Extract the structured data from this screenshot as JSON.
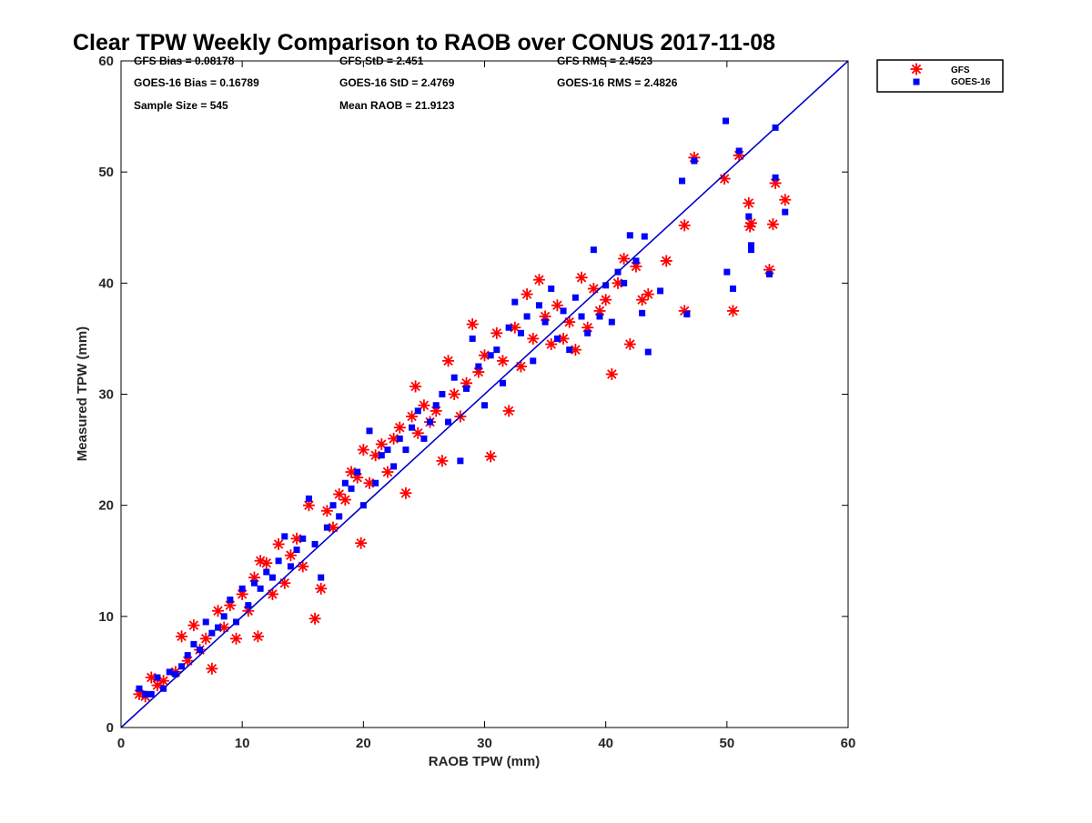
{
  "chart_data": {
    "type": "scatter",
    "title": "Clear TPW Weekly Comparison to RAOB over CONUS 2017-11-08",
    "xlabel": "RAOB TPW (mm)",
    "ylabel": "Measured TPW (mm)",
    "xlim": [
      0,
      60
    ],
    "ylim": [
      0,
      60
    ],
    "xticks": [
      0,
      10,
      20,
      30,
      40,
      50,
      60
    ],
    "yticks": [
      0,
      10,
      20,
      30,
      40,
      50,
      60
    ],
    "grid": false,
    "legend_position": "top-right outside",
    "reference_line": {
      "from": [
        0,
        0
      ],
      "to": [
        60,
        60
      ],
      "color": "#0000cc"
    },
    "stats": [
      {
        "text": "GFS Bias = 0.08178",
        "row": 0,
        "col": 0
      },
      {
        "text": "GFS StD = 2.451",
        "row": 0,
        "col": 1
      },
      {
        "text": "GFS RMS = 2.4523",
        "row": 0,
        "col": 2
      },
      {
        "text": "GOES-16 Bias = 0.16789",
        "row": 1,
        "col": 0
      },
      {
        "text": "GOES-16 StD = 2.4769",
        "row": 1,
        "col": 1
      },
      {
        "text": "GOES-16 RMS = 2.4826",
        "row": 1,
        "col": 2
      },
      {
        "text": "Sample Size = 545",
        "row": 2,
        "col": 0
      },
      {
        "text": "Mean RAOB = 21.9123",
        "row": 2,
        "col": 1
      }
    ],
    "series": [
      {
        "name": "GFS",
        "marker": "asterisk",
        "color": "#ff0000",
        "points": [
          [
            1.5,
            3.0
          ],
          [
            2.0,
            2.8
          ],
          [
            2.5,
            4.5
          ],
          [
            3.0,
            3.8
          ],
          [
            3.5,
            4.2
          ],
          [
            4.5,
            5.0
          ],
          [
            5.0,
            8.2
          ],
          [
            5.5,
            6.0
          ],
          [
            6.0,
            9.2
          ],
          [
            6.5,
            7.0
          ],
          [
            7.0,
            8.0
          ],
          [
            7.5,
            5.3
          ],
          [
            8.0,
            10.5
          ],
          [
            8.5,
            9.0
          ],
          [
            9.0,
            11.0
          ],
          [
            9.5,
            8.0
          ],
          [
            10.0,
            12.0
          ],
          [
            10.5,
            10.5
          ],
          [
            11.0,
            13.5
          ],
          [
            11.3,
            8.2
          ],
          [
            11.5,
            15.0
          ],
          [
            12.0,
            14.8
          ],
          [
            12.5,
            12.0
          ],
          [
            13.0,
            16.5
          ],
          [
            13.5,
            13.0
          ],
          [
            14.0,
            15.5
          ],
          [
            14.5,
            17.0
          ],
          [
            15.0,
            14.5
          ],
          [
            15.5,
            20.0
          ],
          [
            16.0,
            9.8
          ],
          [
            16.5,
            12.5
          ],
          [
            17.0,
            19.5
          ],
          [
            17.5,
            18.0
          ],
          [
            18.0,
            21.0
          ],
          [
            18.5,
            20.5
          ],
          [
            19.0,
            23.0
          ],
          [
            19.5,
            22.5
          ],
          [
            19.8,
            16.6
          ],
          [
            20.0,
            25.0
          ],
          [
            20.5,
            22.0
          ],
          [
            21.0,
            24.5
          ],
          [
            21.5,
            25.5
          ],
          [
            22.0,
            23.0
          ],
          [
            22.5,
            26.0
          ],
          [
            23.0,
            27.0
          ],
          [
            23.5,
            21.1
          ],
          [
            24.0,
            28.0
          ],
          [
            24.3,
            30.7
          ],
          [
            24.5,
            26.5
          ],
          [
            25.0,
            29.0
          ],
          [
            25.5,
            27.5
          ],
          [
            26.0,
            28.5
          ],
          [
            26.5,
            24.0
          ],
          [
            27.0,
            33.0
          ],
          [
            27.5,
            30.0
          ],
          [
            28.0,
            28.0
          ],
          [
            28.5,
            31.0
          ],
          [
            29.0,
            36.3
          ],
          [
            29.5,
            32.0
          ],
          [
            30.0,
            33.5
          ],
          [
            30.5,
            24.4
          ],
          [
            31.0,
            35.5
          ],
          [
            31.5,
            33.0
          ],
          [
            32.0,
            28.5
          ],
          [
            32.5,
            36.0
          ],
          [
            33.0,
            32.5
          ],
          [
            33.5,
            39.0
          ],
          [
            34.0,
            35.0
          ],
          [
            34.5,
            40.3
          ],
          [
            35.0,
            37.0
          ],
          [
            35.5,
            34.5
          ],
          [
            36.0,
            38.0
          ],
          [
            36.5,
            35.0
          ],
          [
            37.0,
            36.5
          ],
          [
            37.5,
            34.0
          ],
          [
            38.0,
            40.5
          ],
          [
            38.5,
            36.0
          ],
          [
            39.0,
            39.5
          ],
          [
            39.5,
            37.5
          ],
          [
            40.0,
            38.5
          ],
          [
            40.5,
            31.8
          ],
          [
            41.0,
            40.0
          ],
          [
            41.5,
            42.2
          ],
          [
            42.0,
            34.5
          ],
          [
            42.5,
            41.5
          ],
          [
            43.0,
            38.5
          ],
          [
            43.5,
            39.0
          ],
          [
            45.0,
            42.0
          ],
          [
            46.5,
            45.2
          ],
          [
            46.5,
            37.5
          ],
          [
            47.3,
            51.3
          ],
          [
            49.8,
            49.4
          ],
          [
            50.5,
            37.5
          ],
          [
            51.0,
            51.5
          ],
          [
            51.8,
            47.2
          ],
          [
            51.9,
            45.1
          ],
          [
            52.0,
            45.4
          ],
          [
            53.5,
            41.2
          ],
          [
            53.8,
            45.3
          ],
          [
            54.0,
            49.0
          ],
          [
            54.8,
            47.5
          ]
        ]
      },
      {
        "name": "GOES-16",
        "marker": "square",
        "color": "#0000ff",
        "points": [
          [
            1.5,
            3.5
          ],
          [
            2.0,
            3.0
          ],
          [
            2.5,
            3.0
          ],
          [
            3.0,
            4.5
          ],
          [
            3.5,
            3.5
          ],
          [
            4.0,
            5.0
          ],
          [
            4.5,
            4.8
          ],
          [
            5.0,
            5.5
          ],
          [
            5.5,
            6.5
          ],
          [
            6.0,
            7.5
          ],
          [
            6.5,
            7.0
          ],
          [
            7.0,
            9.5
          ],
          [
            7.5,
            8.5
          ],
          [
            8.0,
            9.0
          ],
          [
            8.5,
            10.0
          ],
          [
            9.0,
            11.5
          ],
          [
            9.5,
            9.5
          ],
          [
            10.0,
            12.5
          ],
          [
            10.5,
            11.0
          ],
          [
            11.0,
            13.0
          ],
          [
            11.5,
            12.5
          ],
          [
            12.0,
            14.0
          ],
          [
            12.5,
            13.5
          ],
          [
            13.0,
            15.0
          ],
          [
            13.5,
            17.2
          ],
          [
            14.0,
            14.5
          ],
          [
            14.5,
            16.0
          ],
          [
            15.0,
            17.0
          ],
          [
            15.5,
            20.6
          ],
          [
            16.0,
            16.5
          ],
          [
            16.5,
            13.5
          ],
          [
            17.0,
            18.0
          ],
          [
            17.5,
            20.0
          ],
          [
            18.0,
            19.0
          ],
          [
            18.5,
            22.0
          ],
          [
            19.0,
            21.5
          ],
          [
            19.5,
            23.0
          ],
          [
            20.0,
            20.0
          ],
          [
            20.5,
            26.7
          ],
          [
            21.0,
            22.0
          ],
          [
            21.5,
            24.5
          ],
          [
            22.0,
            25.0
          ],
          [
            22.5,
            23.5
          ],
          [
            23.0,
            26.0
          ],
          [
            23.5,
            25.0
          ],
          [
            24.0,
            27.0
          ],
          [
            24.5,
            28.5
          ],
          [
            25.0,
            26.0
          ],
          [
            25.5,
            27.5
          ],
          [
            26.0,
            29.0
          ],
          [
            26.5,
            30.0
          ],
          [
            27.0,
            27.5
          ],
          [
            27.5,
            31.5
          ],
          [
            28.0,
            24.0
          ],
          [
            28.5,
            30.5
          ],
          [
            29.0,
            35.0
          ],
          [
            29.5,
            32.5
          ],
          [
            30.0,
            29.0
          ],
          [
            30.5,
            33.5
          ],
          [
            31.0,
            34.0
          ],
          [
            31.5,
            31.0
          ],
          [
            32.0,
            36.0
          ],
          [
            32.5,
            38.3
          ],
          [
            33.0,
            35.5
          ],
          [
            33.5,
            37.0
          ],
          [
            34.0,
            33.0
          ],
          [
            34.5,
            38.0
          ],
          [
            35.0,
            36.5
          ],
          [
            35.5,
            39.5
          ],
          [
            36.0,
            35.0
          ],
          [
            36.5,
            37.5
          ],
          [
            37.0,
            34.0
          ],
          [
            37.5,
            38.7
          ],
          [
            38.0,
            37.0
          ],
          [
            38.5,
            35.5
          ],
          [
            39.0,
            43.0
          ],
          [
            39.5,
            37.0
          ],
          [
            40.0,
            39.8
          ],
          [
            40.5,
            36.5
          ],
          [
            41.0,
            41.0
          ],
          [
            41.5,
            40.0
          ],
          [
            42.0,
            44.3
          ],
          [
            42.5,
            42.0
          ],
          [
            43.0,
            37.3
          ],
          [
            43.2,
            44.2
          ],
          [
            43.5,
            33.8
          ],
          [
            44.5,
            39.3
          ],
          [
            46.3,
            49.2
          ],
          [
            46.7,
            37.2
          ],
          [
            47.3,
            51.0
          ],
          [
            49.9,
            54.6
          ],
          [
            50.0,
            41.0
          ],
          [
            50.5,
            39.5
          ],
          [
            51.0,
            51.9
          ],
          [
            51.8,
            46.0
          ],
          [
            52.0,
            43.4
          ],
          [
            52.0,
            43.0
          ],
          [
            53.5,
            40.8
          ],
          [
            54.0,
            54.0
          ],
          [
            54.0,
            49.5
          ],
          [
            54.8,
            46.4
          ]
        ]
      }
    ]
  }
}
